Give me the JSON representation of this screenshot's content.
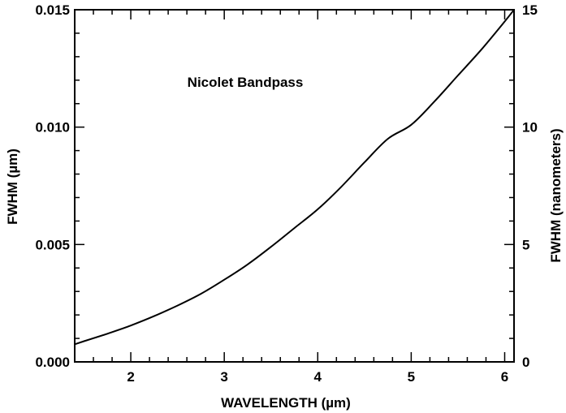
{
  "chart_data": {
    "type": "line",
    "title": "",
    "annotation": "Nicolet Bandpass",
    "xlabel": "WAVELENGTH (µm)",
    "ylabel_left": "FWHM (µm)",
    "ylabel_right": "FWHM (nanometers)",
    "xlim": [
      1.4,
      6.1
    ],
    "ylim_left": [
      0.0,
      0.015
    ],
    "ylim_right": [
      0,
      15
    ],
    "x_ticks": [
      2,
      3,
      4,
      5,
      6
    ],
    "x_tick_labels": [
      "2",
      "3",
      "4",
      "5",
      "6"
    ],
    "y_left_ticks": [
      0.0,
      0.005,
      0.01,
      0.015
    ],
    "y_left_tick_labels": [
      "0.000",
      "0.005",
      "0.010",
      "0.015"
    ],
    "y_right_ticks": [
      0,
      5,
      10,
      15
    ],
    "y_right_tick_labels": [
      "0",
      "5",
      "10",
      "15"
    ],
    "grid": false,
    "line_color": "#000000",
    "series": [
      {
        "x": [
          1.4,
          1.5,
          1.75,
          2.0,
          2.25,
          2.5,
          2.75,
          3.0,
          3.25,
          3.5,
          3.75,
          4.0,
          4.25,
          4.5,
          4.75,
          5.0,
          5.25,
          5.5,
          5.75,
          6.0,
          6.1
        ],
        "y": [
          0.00075,
          0.00088,
          0.0012,
          0.00155,
          0.00195,
          0.0024,
          0.0029,
          0.0035,
          0.00415,
          0.0049,
          0.0057,
          0.0065,
          0.00745,
          0.0085,
          0.0095,
          0.0101,
          0.0111,
          0.0122,
          0.0133,
          0.0145,
          0.015
        ]
      }
    ]
  }
}
